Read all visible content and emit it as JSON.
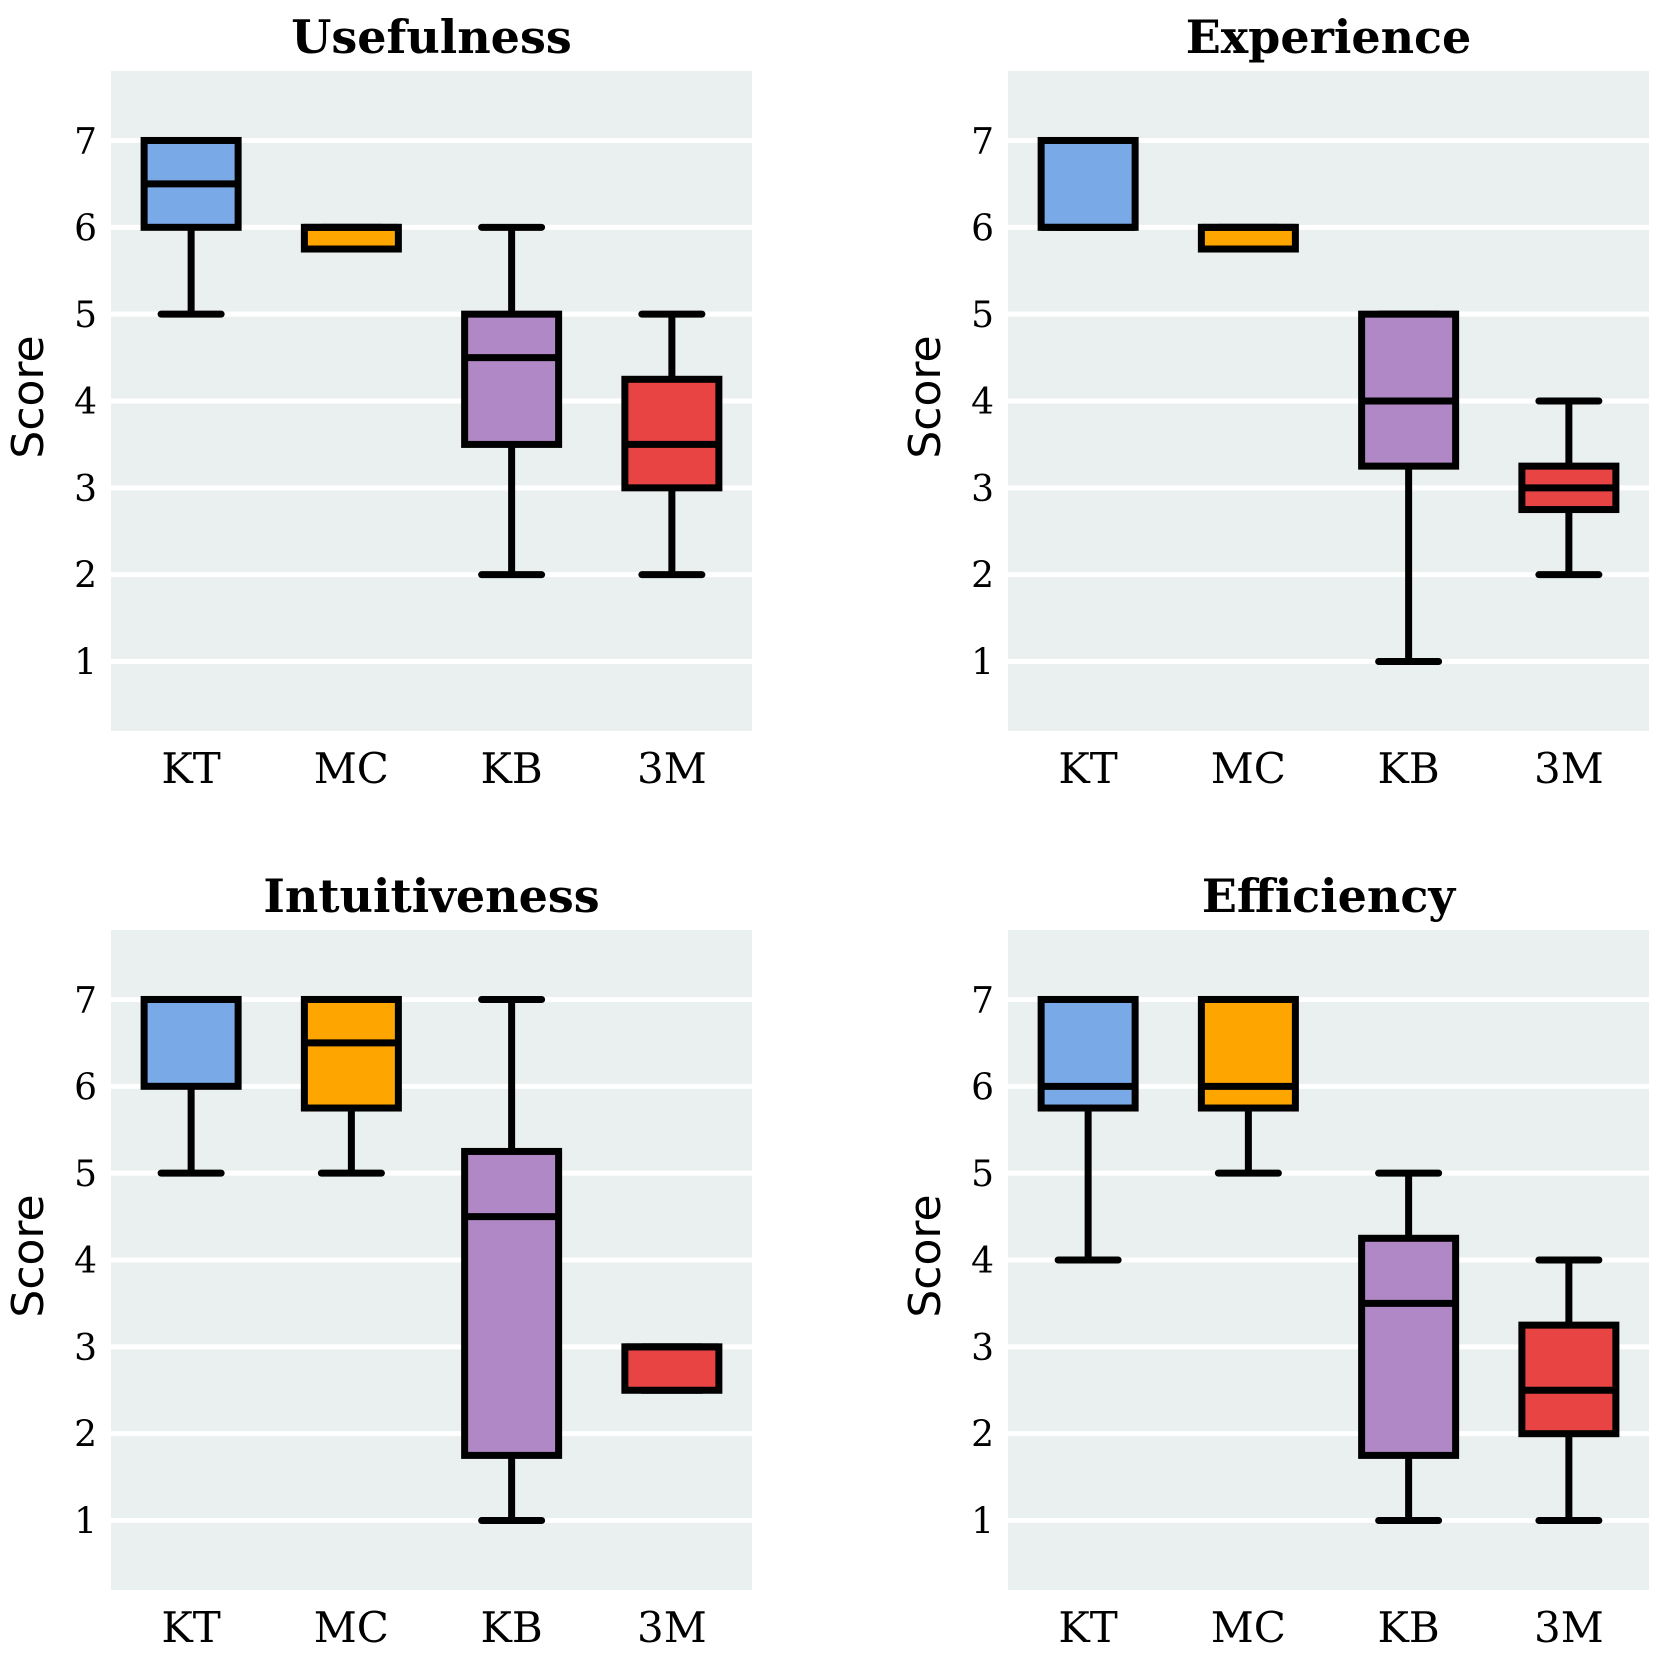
{
  "chart_data": [
    {
      "type": "box",
      "title": "Usefulness",
      "ylabel": "Score",
      "categories": [
        "KT",
        "MC",
        "KB",
        "3M"
      ],
      "ylim": [
        0.2,
        7.8
      ],
      "yticks": [
        "1",
        "2",
        "3",
        "4",
        "5",
        "6",
        "7"
      ],
      "boxes": [
        {
          "name": "KT",
          "whisker_low": 5,
          "q1": 6,
          "median": 6.5,
          "q3": 7,
          "whisker_high": 7,
          "color": "#7aa9e8"
        },
        {
          "name": "MC",
          "whisker_low": 5.75,
          "q1": 5.75,
          "median": 6,
          "q3": 6,
          "whisker_high": 6,
          "color": "#ffa500"
        },
        {
          "name": "KB",
          "whisker_low": 2,
          "q1": 3.5,
          "median": 4.5,
          "q3": 5,
          "whisker_high": 6,
          "color": "#af88c5"
        },
        {
          "name": "3M",
          "whisker_low": 2,
          "q1": 3,
          "median": 3.5,
          "q3": 4.25,
          "whisker_high": 5,
          "color": "#e84444"
        }
      ]
    },
    {
      "type": "box",
      "title": "Experience",
      "ylabel": "Score",
      "categories": [
        "KT",
        "MC",
        "KB",
        "3M"
      ],
      "ylim": [
        0.2,
        7.8
      ],
      "yticks": [
        "1",
        "2",
        "3",
        "4",
        "5",
        "6",
        "7"
      ],
      "boxes": [
        {
          "name": "KT",
          "whisker_low": 6,
          "q1": 6,
          "median": 6,
          "q3": 7,
          "whisker_high": 7,
          "color": "#7aa9e8"
        },
        {
          "name": "MC",
          "whisker_low": 5.75,
          "q1": 5.75,
          "median": 6,
          "q3": 6,
          "whisker_high": 6,
          "color": "#ffa500"
        },
        {
          "name": "KB",
          "whisker_low": 1,
          "q1": 3.25,
          "median": 4,
          "q3": 5,
          "whisker_high": 5,
          "color": "#af88c5"
        },
        {
          "name": "3M",
          "whisker_low": 2,
          "q1": 2.75,
          "median": 3,
          "q3": 3.25,
          "whisker_high": 4,
          "color": "#e84444"
        }
      ]
    },
    {
      "type": "box",
      "title": "Intuitiveness",
      "ylabel": "Score",
      "categories": [
        "KT",
        "MC",
        "KB",
        "3M"
      ],
      "ylim": [
        0.2,
        7.8
      ],
      "yticks": [
        "1",
        "2",
        "3",
        "4",
        "5",
        "6",
        "7"
      ],
      "boxes": [
        {
          "name": "KT",
          "whisker_low": 5,
          "q1": 6,
          "median": 7,
          "q3": 7,
          "whisker_high": 7,
          "color": "#7aa9e8"
        },
        {
          "name": "MC",
          "whisker_low": 5,
          "q1": 5.75,
          "median": 6.5,
          "q3": 7,
          "whisker_high": 7,
          "color": "#ffa500"
        },
        {
          "name": "KB",
          "whisker_low": 1,
          "q1": 1.75,
          "median": 4.5,
          "q3": 5.25,
          "whisker_high": 7,
          "color": "#af88c5"
        },
        {
          "name": "3M",
          "whisker_low": 2.5,
          "q1": 2.5,
          "median": 3,
          "q3": 3,
          "whisker_high": 3,
          "color": "#e84444"
        }
      ]
    },
    {
      "type": "box",
      "title": "Efficiency",
      "ylabel": "Score",
      "categories": [
        "KT",
        "MC",
        "KB",
        "3M"
      ],
      "ylim": [
        0.2,
        7.8
      ],
      "yticks": [
        "1",
        "2",
        "3",
        "4",
        "5",
        "6",
        "7"
      ],
      "boxes": [
        {
          "name": "KT",
          "whisker_low": 4,
          "q1": 5.75,
          "median": 6,
          "q3": 7,
          "whisker_high": 7,
          "color": "#7aa9e8"
        },
        {
          "name": "MC",
          "whisker_low": 5,
          "q1": 5.75,
          "median": 6,
          "q3": 7,
          "whisker_high": 7,
          "color": "#ffa500"
        },
        {
          "name": "KB",
          "whisker_low": 1,
          "q1": 1.75,
          "median": 3.5,
          "q3": 4.25,
          "whisker_high": 5,
          "color": "#af88c5"
        },
        {
          "name": "3M",
          "whisker_low": 1,
          "q1": 2,
          "median": 2.5,
          "q3": 3.25,
          "whisker_high": 4,
          "color": "#e84444"
        }
      ]
    }
  ],
  "style": {
    "plot_background": "#eaf0ef",
    "grid_color": "#ffffff",
    "stroke_color": "#000000"
  }
}
